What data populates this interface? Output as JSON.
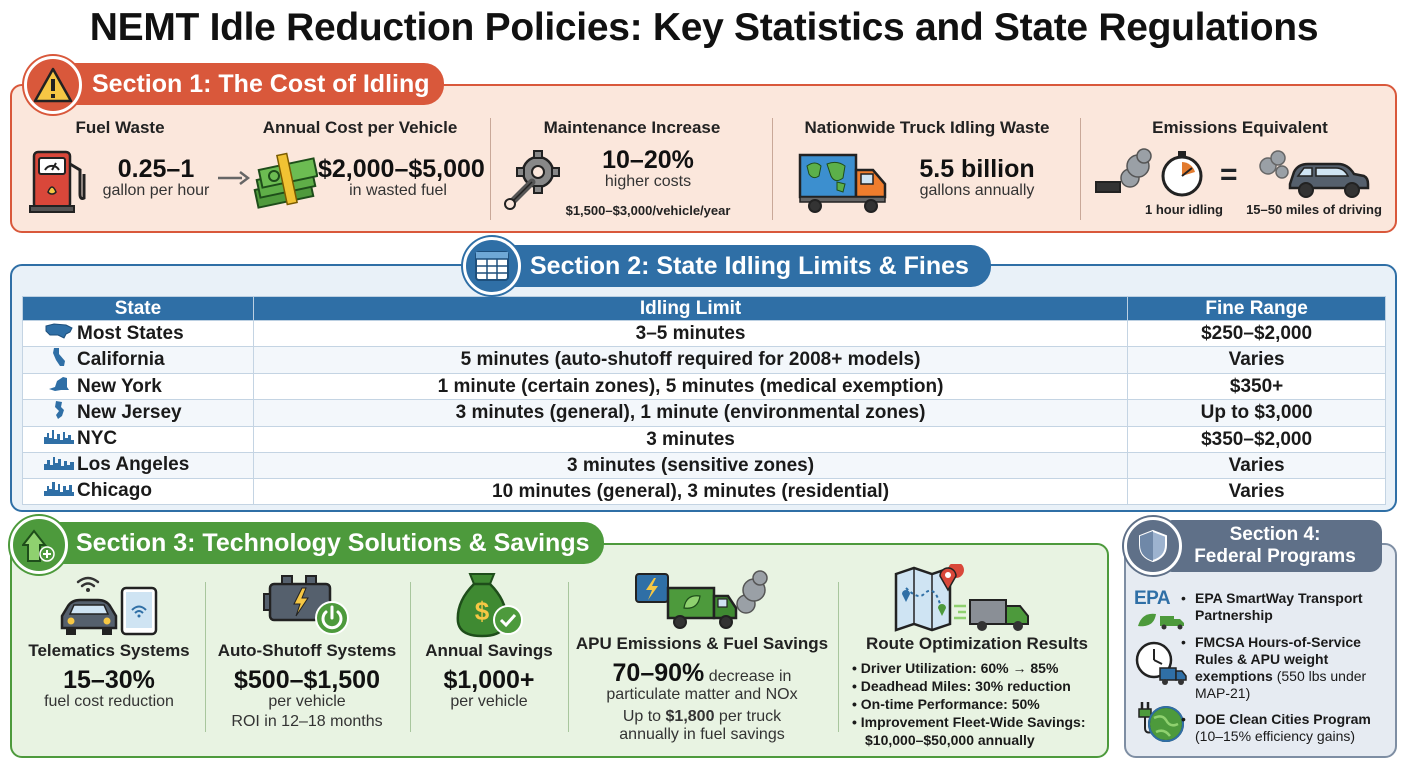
{
  "title": "NEMT Idle Reduction Policies: Key Statistics and State Regulations",
  "section1": {
    "title": "Section 1: The Cost of Idling",
    "fuel_waste": {
      "heading": "Fuel Waste",
      "value": "0.25–1",
      "unit": "gallon per hour"
    },
    "annual_cost": {
      "heading": "Annual Cost per Vehicle",
      "value": "$2,000–$5,000",
      "unit": "in wasted fuel"
    },
    "maintenance": {
      "heading": "Maintenance Increase",
      "value": "10–20%",
      "unit": "higher costs",
      "detail": "$1,500–$3,000/vehicle/year"
    },
    "nationwide": {
      "heading": "Nationwide Truck Idling Waste",
      "value": "5.5 billion",
      "unit": "gallons annually"
    },
    "emissions": {
      "heading": "Emissions Equivalent",
      "left_label": "1 hour idling",
      "equals": "=",
      "right_label": "15–50 miles of driving"
    }
  },
  "section2": {
    "title": "Section 2: State Idling Limits & Fines",
    "columns": [
      "State",
      "Idling Limit",
      "Fine Range"
    ],
    "rows": [
      {
        "state": "Most States",
        "limit": "3–5 minutes",
        "fine": "$250–$2,000",
        "icon": "usa-map-icon"
      },
      {
        "state": "California",
        "limit": "5 minutes (auto-shutoff required for 2008+ models)",
        "fine": "Varies",
        "icon": "california-icon"
      },
      {
        "state": "New York",
        "limit": "1 minute (certain zones), 5 minutes (medical exemption)",
        "fine": "$350+",
        "icon": "new-york-icon"
      },
      {
        "state": "New Jersey",
        "limit": "3 minutes (general), 1 minute (environmental zones)",
        "fine": "Up to $3,000",
        "icon": "new-jersey-icon"
      },
      {
        "state": "NYC",
        "limit": "3 minutes",
        "fine": "$350–$2,000",
        "icon": "city-skyline-icon"
      },
      {
        "state": "Los Angeles",
        "limit": "3 minutes (sensitive zones)",
        "fine": "Varies",
        "icon": "city-skyline-icon"
      },
      {
        "state": "Chicago",
        "limit": "10 minutes (general), 3 minutes (residential)",
        "fine": "Varies",
        "icon": "city-skyline-icon"
      }
    ]
  },
  "section3": {
    "title": "Section 3: Technology Solutions & Savings",
    "telematics": {
      "heading": "Telematics Systems",
      "value": "15–30%",
      "unit": "fuel cost reduction"
    },
    "auto_shutoff": {
      "heading": "Auto-Shutoff Systems",
      "value": "$500–$1,500",
      "unit": "per vehicle",
      "detail": "ROI in 12–18 months"
    },
    "annual_savings": {
      "heading": "Annual Savings",
      "value": "$1,000+",
      "unit": "per vehicle"
    },
    "apu": {
      "heading": "APU Emissions & Fuel Savings",
      "value": "70–90%",
      "value_suffix": "decrease in",
      "line2": "particulate matter and NOx",
      "line3_pre": "Up to",
      "line3_value": "$1,800",
      "line3_post": "per truck",
      "line4": "annually in fuel savings"
    },
    "route": {
      "heading": "Route Optimization Results",
      "items": [
        "Driver Utilization: 60% → 85%",
        "Deadhead Miles: 30% reduction",
        "On-time Performance: 50%",
        "Improvement Fleet-Wide Savings:",
        "$10,000–$50,000 annually"
      ]
    }
  },
  "section4": {
    "title_line1": "Section 4:",
    "title_line2": "Federal Programs",
    "epa_logo": "EPA",
    "items": [
      {
        "bold": "EPA SmartWay Transport Partnership",
        "normal": ""
      },
      {
        "bold": "FMCSA Hours-of-Service Rules & APU weight exemptions",
        "normal": "(550 lbs under MAP-21)"
      },
      {
        "bold": "DOE Clean Cities Program",
        "normal": "(10–15% efficiency gains)"
      }
    ]
  },
  "colors": {
    "section1": "#d9583b",
    "section2": "#2f6fa6",
    "section3": "#4d9a3c",
    "section4": "#5f7088"
  }
}
